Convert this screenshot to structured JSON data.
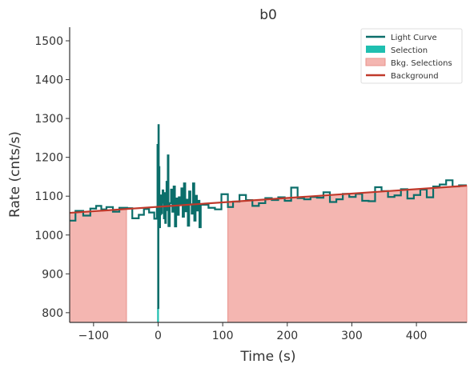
{
  "chart_data": {
    "type": "line",
    "title": "b0",
    "xlabel": "Time (s)",
    "ylabel": "Rate (cnts/s)",
    "xlim": [
      -137,
      478
    ],
    "ylim": [
      775,
      1535
    ],
    "xticks": [
      -100,
      0,
      100,
      200,
      300,
      400
    ],
    "yticks": [
      800,
      900,
      1000,
      1100,
      1200,
      1300,
      1400,
      1500
    ],
    "legend": {
      "position": "top-right",
      "entries": [
        {
          "label": "Light Curve",
          "kind": "line",
          "color": "#0b6e6a"
        },
        {
          "label": "Selection",
          "kind": "patch",
          "color": "#1fbfb0"
        },
        {
          "label": "Bkg. Selections",
          "kind": "patch",
          "color": "#f4b6b1"
        },
        {
          "label": "Background",
          "kind": "line",
          "color": "#c0392b"
        }
      ]
    },
    "colors": {
      "light_curve": "#0b6e6a",
      "selection": "#1fbfb0",
      "bkg_fill": "#f4b6b1",
      "bkg_edge": "#e8918a",
      "background": "#c0392b"
    },
    "background_fit": {
      "x": [
        -137,
        478
      ],
      "y": [
        1057,
        1127
      ]
    },
    "bkg_selections": [
      [
        -137,
        -49
      ],
      [
        108,
        478
      ]
    ],
    "selection": [
      -1.5,
      1.2
    ],
    "light_curve": {
      "x": [
        -137,
        -128,
        -116,
        -105,
        -96,
        -88,
        -80,
        -70,
        -60,
        -48,
        -40,
        -30,
        -22,
        -14,
        -6,
        -2,
        -1,
        0,
        0.5,
        1,
        2,
        3,
        4,
        5,
        6,
        7,
        8,
        9,
        10,
        11,
        12,
        13,
        14,
        15,
        16,
        18,
        20,
        22,
        24,
        26,
        28,
        30,
        32,
        34,
        36,
        38,
        40,
        42,
        44,
        46,
        48,
        50,
        52,
        54,
        56,
        58,
        60,
        62,
        64,
        66,
        78,
        88,
        98,
        108,
        116,
        126,
        136,
        146,
        156,
        166,
        176,
        186,
        196,
        206,
        216,
        226,
        236,
        246,
        256,
        266,
        276,
        286,
        296,
        306,
        316,
        326,
        336,
        346,
        356,
        366,
        376,
        386,
        396,
        406,
        416,
        426,
        436,
        446,
        456,
        466,
        478
      ],
      "y": [
        1037,
        1062,
        1050,
        1068,
        1075,
        1066,
        1072,
        1060,
        1070,
        1069,
        1043,
        1052,
        1067,
        1058,
        1042,
        1070,
        1232,
        812,
        1283,
        1175,
        1020,
        1053,
        1102,
        1056,
        1083,
        1115,
        1090,
        1043,
        1108,
        1031,
        1072,
        1137,
        1064,
        1205,
        1023,
        1082,
        1117,
        1060,
        1125,
        1022,
        1094,
        1052,
        1097,
        1081,
        1120,
        1047,
        1133,
        1061,
        1091,
        1024,
        1112,
        1079,
        1055,
        1133,
        1037,
        1101,
        1063,
        1088,
        1020,
        1078,
        1070,
        1066,
        1105,
        1072,
        1086,
        1103,
        1090,
        1075,
        1082,
        1095,
        1090,
        1097,
        1088,
        1122,
        1095,
        1092,
        1098,
        1096,
        1110,
        1085,
        1092,
        1106,
        1098,
        1106,
        1088,
        1087,
        1123,
        1113,
        1098,
        1102,
        1118,
        1094,
        1103,
        1117,
        1097,
        1125,
        1130,
        1141,
        1125,
        1128,
        1127
      ]
    }
  }
}
